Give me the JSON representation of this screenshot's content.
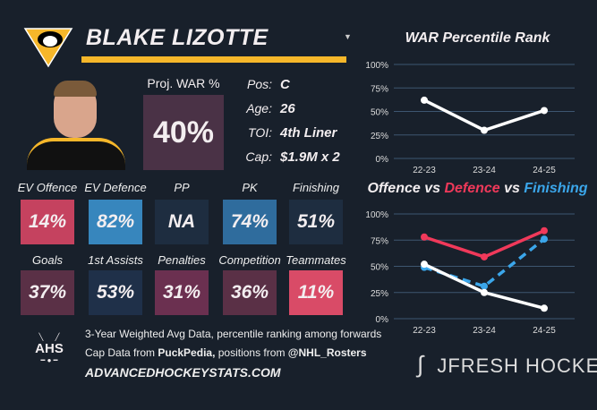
{
  "player": {
    "name": "BLAKE LIZOTTE",
    "team_logo": "penguins-logo",
    "proj_war_label": "Proj. WAR %",
    "proj_war": "40%"
  },
  "info": [
    {
      "k": "Pos:",
      "v": "C"
    },
    {
      "k": "Age:",
      "v": "26"
    },
    {
      "k": "TOI:",
      "v": "4th Liner"
    },
    {
      "k": "Cap:",
      "v": "$1.9M x 2"
    }
  ],
  "tiles": [
    {
      "label": "EV Offence",
      "value": "14%",
      "color": "#c5425f"
    },
    {
      "label": "EV Defence",
      "value": "82%",
      "color": "#3786bd"
    },
    {
      "label": "PP",
      "value": "NA",
      "color": "#1e2d40"
    },
    {
      "label": "PK",
      "value": "74%",
      "color": "#2f6c9d"
    },
    {
      "label": "Finishing",
      "value": "51%",
      "color": "#1e2d40"
    },
    {
      "label": "Goals",
      "value": "37%",
      "color": "#5a3046"
    },
    {
      "label": "1st Assists",
      "value": "53%",
      "color": "#1f3049"
    },
    {
      "label": "Penalties",
      "value": "31%",
      "color": "#6b3050"
    },
    {
      "label": "Competition",
      "value": "36%",
      "color": "#5a3046"
    },
    {
      "label": "Teammates",
      "value": "11%",
      "color": "#d94b67"
    }
  ],
  "footer": {
    "line1": "3-Year Weighted Avg Data, percentile ranking among forwards",
    "line2_a": "Cap Data from ",
    "line2_b": "PuckPedia,",
    "line2_c": " positions from ",
    "line2_d": "@NHL_Rosters",
    "site": "ADVANCEDHOCKEYSTATS.COM",
    "ahs_logo": "AHS",
    "brand": "JFRESH HOCKEY"
  },
  "chart_data": [
    {
      "type": "line",
      "title": "WAR Percentile Rank",
      "categories": [
        "22-23",
        "23-24",
        "24-25"
      ],
      "yticks": [
        "0%",
        "25%",
        "50%",
        "75%",
        "100%"
      ],
      "ylim": [
        0,
        100
      ],
      "series": [
        {
          "name": "WAR",
          "values": [
            62,
            30,
            51
          ],
          "color": "#ffffff"
        }
      ]
    },
    {
      "type": "line",
      "title_parts": [
        "Offence",
        " vs ",
        "Defence",
        " vs ",
        "Finishing"
      ],
      "categories": [
        "22-23",
        "23-24",
        "24-25"
      ],
      "yticks": [
        "0%",
        "25%",
        "50%",
        "75%",
        "100%"
      ],
      "ylim": [
        0,
        100
      ],
      "series": [
        {
          "name": "Defence",
          "values": [
            78,
            59,
            84
          ],
          "color": "#f0395a"
        },
        {
          "name": "Finishing",
          "values": [
            49,
            31,
            76
          ],
          "color": "#3ba6ea",
          "dashed": true
        },
        {
          "name": "Offence",
          "values": [
            52,
            25,
            10
          ],
          "color": "#ffffff"
        }
      ]
    }
  ]
}
